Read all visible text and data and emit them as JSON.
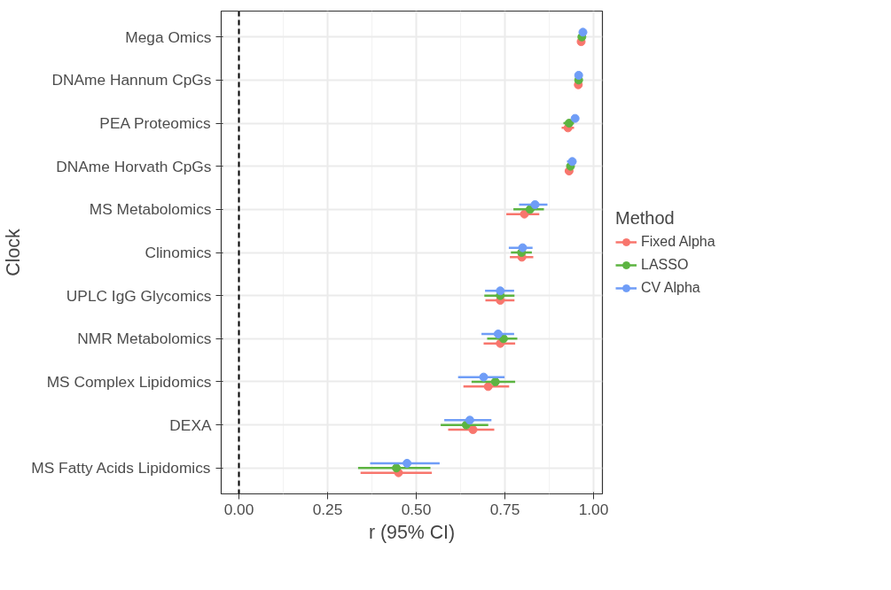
{
  "chart_data": {
    "type": "scatter",
    "xlabel": "r (95% CI)",
    "ylabel": "Clock",
    "legend_title": "Method",
    "categories": [
      "Mega Omics",
      "DNAme Hannum CpGs",
      "PEA Proteomics",
      "DNAme Horvath CpGs",
      "MS Metabolomics",
      "Clinomics",
      "UPLC IgG Glycomics",
      "NMR Metabolomics",
      "MS Complex Lipidomics",
      "DEXA",
      "MS Fatty Acids Lipidomics"
    ],
    "series": [
      {
        "name": "Fixed Alpha",
        "color": "#f8766d",
        "values": [
          0.965,
          0.957,
          0.928,
          0.931,
          0.805,
          0.798,
          0.737,
          0.737,
          0.703,
          0.66,
          0.45
        ],
        "errors": [
          null,
          null,
          [
            0.91,
            0.945
          ],
          [
            0.92,
            0.94
          ],
          [
            0.754,
            0.847
          ],
          [
            0.764,
            0.83
          ],
          [
            0.695,
            0.777
          ],
          [
            0.69,
            0.779
          ],
          [
            0.633,
            0.762
          ],
          [
            0.59,
            0.72
          ],
          [
            0.343,
            0.544
          ]
        ]
      },
      {
        "name": "LASSO",
        "color": "#5cb441",
        "values": [
          0.967,
          0.958,
          0.931,
          0.935,
          0.821,
          0.797,
          0.737,
          0.746,
          0.723,
          0.641,
          0.444
        ],
        "errors": [
          null,
          null,
          [
            0.915,
            0.945
          ],
          [
            0.925,
            0.945
          ],
          [
            0.774,
            0.86
          ],
          [
            0.767,
            0.826
          ],
          [
            0.692,
            0.777
          ],
          [
            0.7,
            0.785
          ],
          [
            0.656,
            0.779
          ],
          [
            0.569,
            0.703
          ],
          [
            0.336,
            0.54
          ]
        ]
      },
      {
        "name": "CV Alpha",
        "color": "#6f9df7",
        "values": [
          0.97,
          0.958,
          0.948,
          0.94,
          0.835,
          0.8,
          0.737,
          0.731,
          0.69,
          0.651,
          0.474
        ],
        "errors": [
          null,
          null,
          null,
          [
            0.925,
            0.95
          ],
          [
            0.79,
            0.87
          ],
          [
            0.761,
            0.828
          ],
          [
            0.694,
            0.776
          ],
          [
            0.684,
            0.776
          ],
          [
            0.618,
            0.749
          ],
          [
            0.579,
            0.712
          ],
          [
            0.37,
            0.566
          ]
        ]
      }
    ],
    "xlim": [
      -0.05,
      1.025
    ],
    "xticks": [
      {
        "value": 0,
        "label": "0.00"
      },
      {
        "value": 0.25,
        "label": "0.25"
      },
      {
        "value": 0.5,
        "label": "0.50"
      },
      {
        "value": 0.75,
        "label": "0.75"
      },
      {
        "value": 1,
        "label": "1.00"
      }
    ],
    "ref_lines": [
      {
        "axis": "x",
        "value": 0,
        "label": null,
        "color": "#000000",
        "line_style": "dashed"
      }
    ],
    "grid": true,
    "legend": "right",
    "marker": "circle",
    "orientation": "horizontal"
  }
}
